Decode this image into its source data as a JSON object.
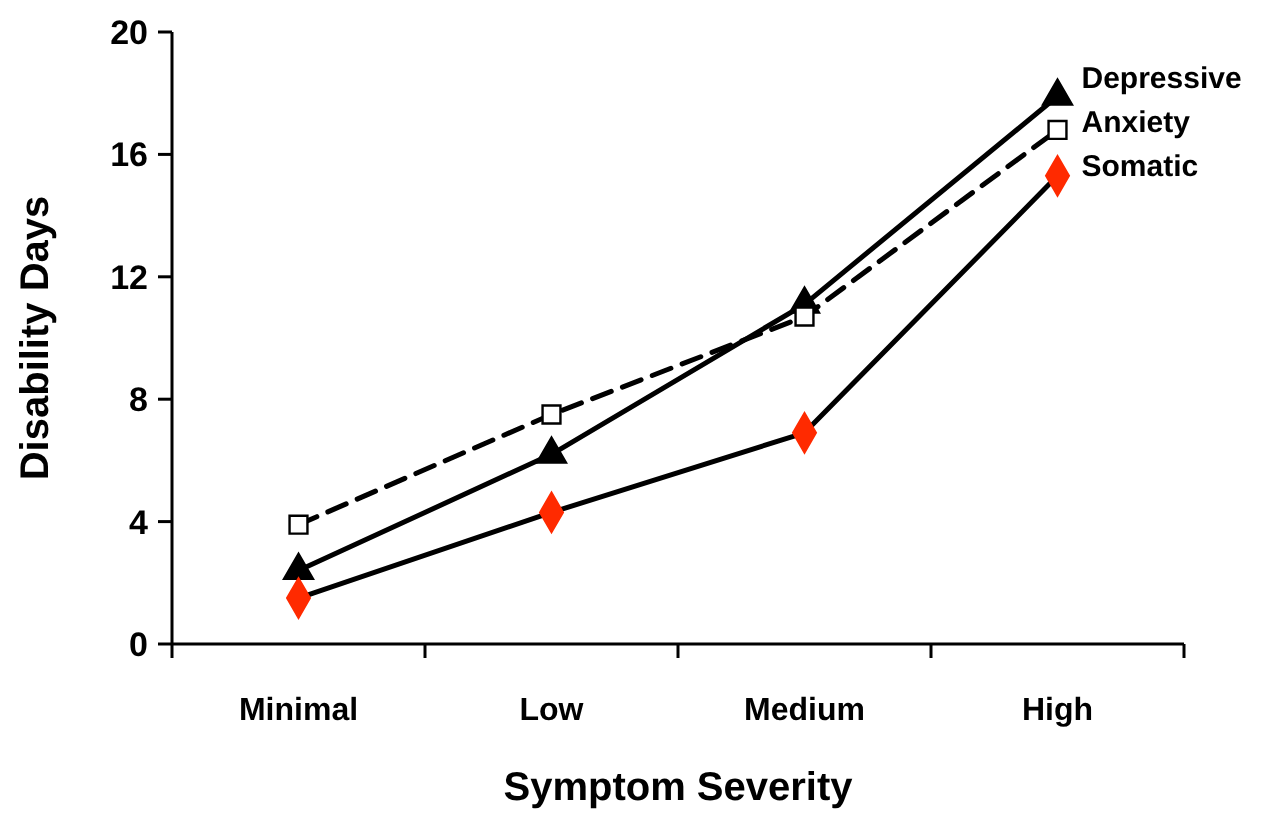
{
  "chart_data": {
    "type": "line",
    "xlabel": "Symptom Severity",
    "ylabel": "Disability Days",
    "categories": [
      "Minimal",
      "Low",
      "Medium",
      "High"
    ],
    "series": [
      {
        "name": "Depressive",
        "color": "#000000",
        "marker": "triangle",
        "line_style": "solid",
        "values": [
          2.4,
          6.2,
          11.1,
          17.9
        ]
      },
      {
        "name": "Anxiety",
        "color": "#000000",
        "marker": "square",
        "line_style": "dashed",
        "colors": [
          "#ffffff",
          "#ffffff",
          "#ffffff",
          "#ffffff"
        ],
        "values": [
          3.9,
          7.5,
          10.7,
          16.8
        ]
      },
      {
        "name": "Somatic",
        "color": "#000000",
        "marker": "diamond",
        "line_style": "solid",
        "colors": [
          "#ff2a00",
          "#ff2a00",
          "#ff2a00",
          "#ff2a00"
        ],
        "values": [
          1.5,
          4.3,
          6.9,
          15.3
        ]
      }
    ],
    "ylim": [
      0,
      20
    ],
    "yticks": [
      0,
      4,
      8,
      12,
      16,
      20
    ],
    "grid": false
  }
}
